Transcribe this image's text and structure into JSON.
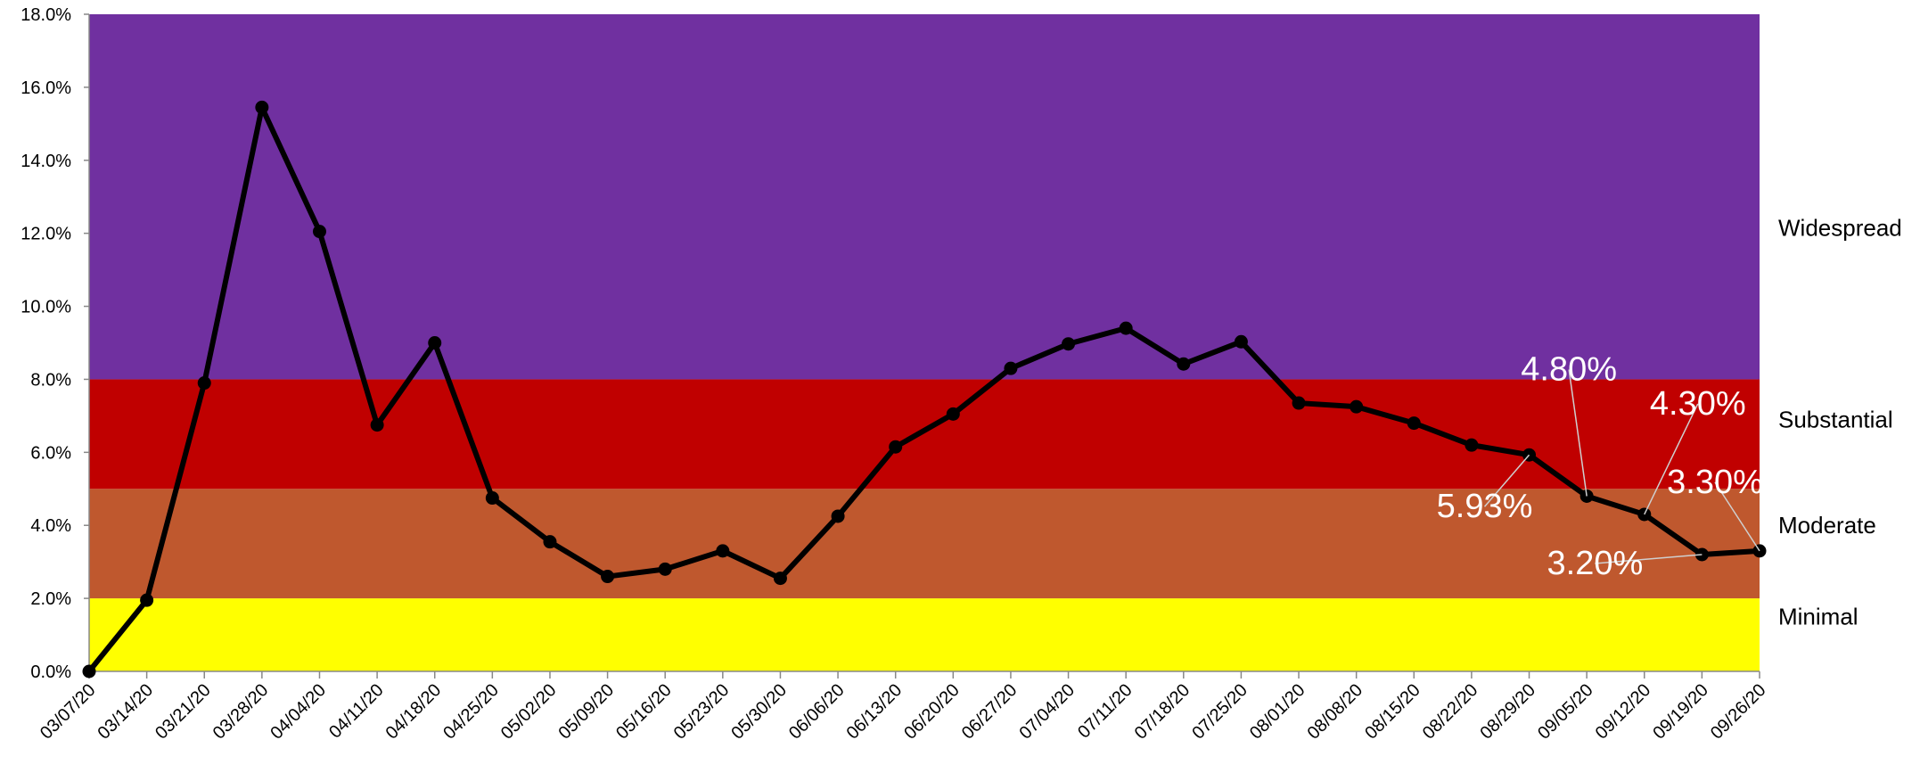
{
  "chart_data": {
    "type": "line",
    "title": "",
    "xlabel": "",
    "ylabel": "",
    "ylim": [
      0,
      18
    ],
    "y_ticks": [
      "0.0%",
      "2.0%",
      "4.0%",
      "6.0%",
      "8.0%",
      "10.0%",
      "12.0%",
      "14.0%",
      "16.0%",
      "18.0%"
    ],
    "x": [
      "03/07/20",
      "03/14/20",
      "03/21/20",
      "03/28/20",
      "04/04/20",
      "04/11/20",
      "04/18/20",
      "04/25/20",
      "05/02/20",
      "05/09/20",
      "05/16/20",
      "05/23/20",
      "05/30/20",
      "06/06/20",
      "06/13/20",
      "06/20/20",
      "06/27/20",
      "07/04/20",
      "07/11/20",
      "07/18/20",
      "07/25/20",
      "08/01/20",
      "08/08/20",
      "08/15/20",
      "08/22/20",
      "08/29/20",
      "09/05/20",
      "09/12/20",
      "09/19/20",
      "09/26/20"
    ],
    "series": [
      {
        "values": [
          0.0,
          1.95,
          7.9,
          15.45,
          12.05,
          6.75,
          9.0,
          4.75,
          3.55,
          2.6,
          2.8,
          3.3,
          2.55,
          4.25,
          6.15,
          7.05,
          8.3,
          8.97,
          9.4,
          8.42,
          9.03,
          7.35,
          7.25,
          6.8,
          6.2,
          5.93,
          4.8,
          4.3,
          3.2,
          3.3
        ],
        "color": "#000000"
      }
    ],
    "bands": [
      {
        "label": "Minimal",
        "from": 0,
        "to": 2,
        "color": "#ffff00"
      },
      {
        "label": "Moderate",
        "from": 2,
        "to": 5,
        "color": "#bf582e"
      },
      {
        "label": "Substantial",
        "from": 5,
        "to": 8,
        "color": "#c00000"
      },
      {
        "label": "Widespread",
        "from": 8,
        "to": 18,
        "color": "#7030a0"
      }
    ],
    "annotations": [
      {
        "text": "5.93%",
        "index": 25
      },
      {
        "text": "4.80%",
        "index": 26
      },
      {
        "text": "4.30%",
        "index": 27
      },
      {
        "text": "3.20%",
        "index": 28
      },
      {
        "text": "3.30%",
        "index": 29
      }
    ],
    "grid": false,
    "legend": "right"
  }
}
